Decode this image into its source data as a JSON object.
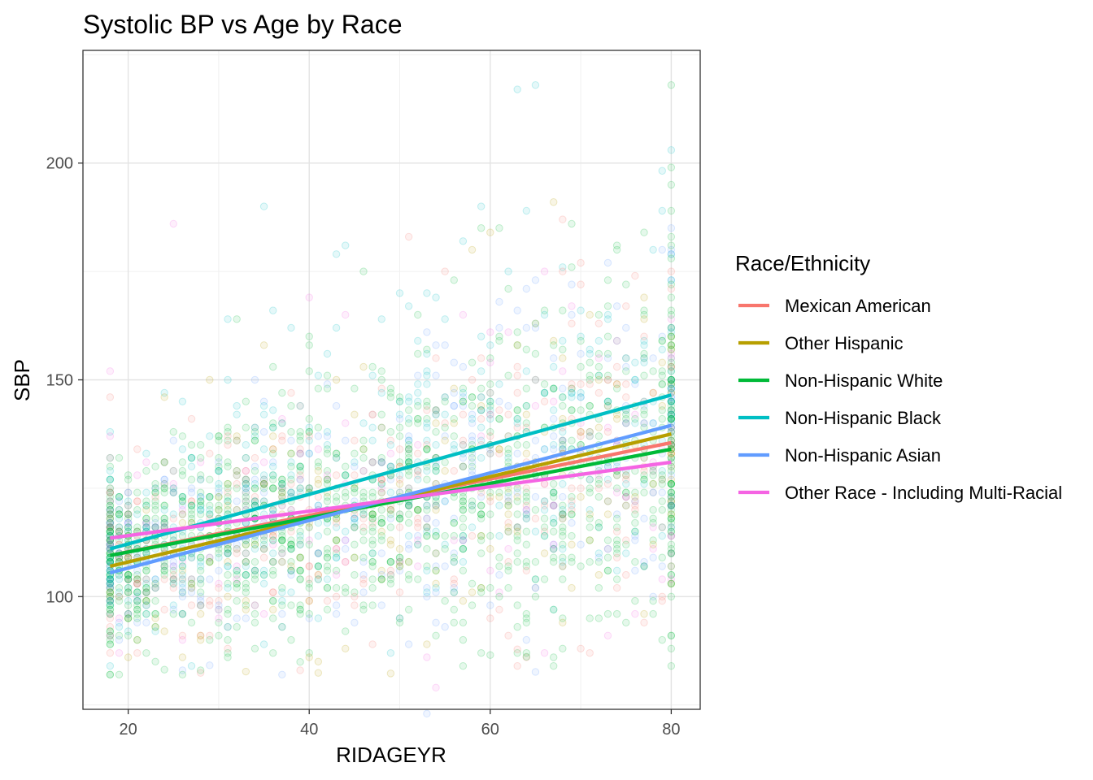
{
  "chart_data": {
    "type": "scatter",
    "title": "Systolic BP vs Age by Race",
    "xlabel": "RIDAGEYR",
    "ylabel": "SBP",
    "xlim": [
      15,
      83.2
    ],
    "ylim": [
      74,
      226
    ],
    "x_ticks": [
      20,
      40,
      60,
      80
    ],
    "y_ticks": [
      100,
      150,
      200
    ],
    "x_tick_labels": [
      "20",
      "40",
      "60",
      "80"
    ],
    "y_tick_labels": [
      "100",
      "150",
      "200"
    ],
    "grid": true,
    "legend": {
      "title": "Race/Ethnicity",
      "position": "right"
    },
    "series": [
      {
        "name": "Mexican American",
        "color": "#F8766D",
        "fit": {
          "x": [
            18,
            80
          ],
          "y": [
            109.5,
            135.5
          ]
        }
      },
      {
        "name": "Other Hispanic",
        "color": "#B79F00",
        "fit": {
          "x": [
            18,
            80
          ],
          "y": [
            107,
            137.5
          ]
        }
      },
      {
        "name": "Non-Hispanic White",
        "color": "#00BA38",
        "fit": {
          "x": [
            18,
            80
          ],
          "y": [
            109.5,
            134
          ]
        }
      },
      {
        "name": "Non-Hispanic Black",
        "color": "#00BFC4",
        "fit": {
          "x": [
            18,
            80
          ],
          "y": [
            111,
            146.5
          ]
        }
      },
      {
        "name": "Non-Hispanic Asian",
        "color": "#619CFF",
        "fit": {
          "x": [
            18,
            80
          ],
          "y": [
            105.5,
            139.5
          ]
        }
      },
      {
        "name": "Other Race - Including Multi-Racial",
        "color": "#F564E3",
        "fit": {
          "x": [
            18,
            80
          ],
          "y": [
            113.5,
            131
          ]
        }
      }
    ],
    "points": [
      {
        "x": 18,
        "y": 84,
        "s": 3
      },
      {
        "x": 18,
        "y": 152,
        "s": 5
      },
      {
        "x": 18,
        "y": 146,
        "s": 0
      },
      {
        "x": 19,
        "y": 87,
        "s": 5
      },
      {
        "x": 21,
        "y": 87,
        "s": 0
      },
      {
        "x": 25,
        "y": 186,
        "s": 5
      },
      {
        "x": 24,
        "y": 146,
        "s": 1
      },
      {
        "x": 23,
        "y": 96,
        "s": 2
      },
      {
        "x": 28,
        "y": 90,
        "s": 1
      },
      {
        "x": 31,
        "y": 87,
        "s": 2
      },
      {
        "x": 29,
        "y": 150,
        "s": 1
      },
      {
        "x": 31,
        "y": 164,
        "s": 3
      },
      {
        "x": 32,
        "y": 164,
        "s": 2
      },
      {
        "x": 35,
        "y": 158,
        "s": 1
      },
      {
        "x": 35,
        "y": 89,
        "s": 3
      },
      {
        "x": 34,
        "y": 150,
        "s": 4
      },
      {
        "x": 36,
        "y": 153,
        "s": 2
      },
      {
        "x": 37,
        "y": 136,
        "s": 0
      },
      {
        "x": 38,
        "y": 162,
        "s": 3
      },
      {
        "x": 40,
        "y": 169,
        "s": 5
      },
      {
        "x": 40,
        "y": 158,
        "s": 2
      },
      {
        "x": 42,
        "y": 149,
        "s": 4
      },
      {
        "x": 43,
        "y": 179,
        "s": 3
      },
      {
        "x": 44,
        "y": 181,
        "s": 3
      },
      {
        "x": 44,
        "y": 165,
        "s": 5
      },
      {
        "x": 45,
        "y": 136,
        "s": 0
      },
      {
        "x": 46,
        "y": 175,
        "s": 2
      },
      {
        "x": 40,
        "y": 86,
        "s": 1
      },
      {
        "x": 41,
        "y": 85,
        "s": 1
      },
      {
        "x": 44,
        "y": 88,
        "s": 1
      },
      {
        "x": 35,
        "y": 190,
        "s": 3
      },
      {
        "x": 48,
        "y": 150,
        "s": 2
      },
      {
        "x": 48,
        "y": 110,
        "s": 4
      },
      {
        "x": 50,
        "y": 145,
        "s": 3
      },
      {
        "x": 51,
        "y": 183,
        "s": 0
      },
      {
        "x": 52,
        "y": 140,
        "s": 2
      },
      {
        "x": 53,
        "y": 73,
        "s": 4
      },
      {
        "x": 54,
        "y": 79,
        "s": 5
      },
      {
        "x": 54,
        "y": 169,
        "s": 3
      },
      {
        "x": 55,
        "y": 175,
        "s": 0
      },
      {
        "x": 53,
        "y": 89,
        "s": 1
      },
      {
        "x": 56,
        "y": 173,
        "s": 2
      },
      {
        "x": 57,
        "y": 165,
        "s": 5
      },
      {
        "x": 58,
        "y": 180,
        "s": 1
      },
      {
        "x": 59,
        "y": 190,
        "s": 3
      },
      {
        "x": 59,
        "y": 87,
        "s": 2
      },
      {
        "x": 60,
        "y": 184,
        "s": 1
      },
      {
        "x": 61,
        "y": 162,
        "s": 4
      },
      {
        "x": 62,
        "y": 175,
        "s": 3
      },
      {
        "x": 63,
        "y": 217,
        "s": 3
      },
      {
        "x": 64,
        "y": 189,
        "s": 3
      },
      {
        "x": 65,
        "y": 218,
        "s": 3
      },
      {
        "x": 66,
        "y": 175,
        "s": 5
      },
      {
        "x": 67,
        "y": 191,
        "s": 1
      },
      {
        "x": 68,
        "y": 187,
        "s": 0
      },
      {
        "x": 68,
        "y": 140,
        "s": 2
      },
      {
        "x": 69,
        "y": 186,
        "s": 2
      },
      {
        "x": 70,
        "y": 88,
        "s": 0
      },
      {
        "x": 71,
        "y": 165,
        "s": 1
      },
      {
        "x": 72,
        "y": 155,
        "s": 5
      },
      {
        "x": 73,
        "y": 173,
        "s": 2
      },
      {
        "x": 74,
        "y": 180,
        "s": 2
      },
      {
        "x": 76,
        "y": 150,
        "s": 3
      },
      {
        "x": 77,
        "y": 160,
        "s": 0
      },
      {
        "x": 78,
        "y": 140,
        "s": 4
      },
      {
        "x": 79,
        "y": 100,
        "s": 0
      },
      {
        "x": 80,
        "y": 218,
        "s": 2
      },
      {
        "x": 80,
        "y": 195,
        "s": 2
      },
      {
        "x": 80,
        "y": 181,
        "s": 2
      },
      {
        "x": 80,
        "y": 172,
        "s": 2
      },
      {
        "x": 80,
        "y": 165,
        "s": 2
      },
      {
        "x": 80,
        "y": 158,
        "s": 2
      },
      {
        "x": 80,
        "y": 150,
        "s": 2
      },
      {
        "x": 80,
        "y": 142,
        "s": 2
      },
      {
        "x": 80,
        "y": 134,
        "s": 2
      },
      {
        "x": 80,
        "y": 126,
        "s": 2
      },
      {
        "x": 80,
        "y": 118,
        "s": 2
      },
      {
        "x": 80,
        "y": 110,
        "s": 2
      },
      {
        "x": 80,
        "y": 103,
        "s": 2
      },
      {
        "x": 80,
        "y": 162,
        "s": 4
      },
      {
        "x": 80,
        "y": 145,
        "s": 3
      },
      {
        "x": 75,
        "y": 94,
        "s": 2
      },
      {
        "x": 63,
        "y": 93,
        "s": 2
      },
      {
        "x": 57,
        "y": 94,
        "s": 2
      },
      {
        "x": 33,
        "y": 95,
        "s": 4
      },
      {
        "x": 27,
        "y": 94,
        "s": 2
      },
      {
        "x": 22,
        "y": 94,
        "s": 4
      }
    ],
    "cloud_seed": 20240531,
    "cloud_count": 2600
  }
}
